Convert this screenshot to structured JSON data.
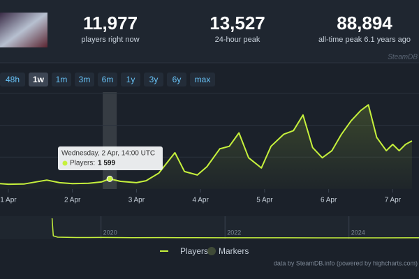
{
  "stats": [
    {
      "value": "11,977",
      "label": "players right now"
    },
    {
      "value": "13,527",
      "label": "24-hour peak"
    },
    {
      "value": "88,894",
      "label": "all-time peak 6.1 years ago"
    }
  ],
  "watermark": "SteamDB",
  "range_buttons": [
    "48h",
    "1w",
    "1m",
    "3m",
    "6m",
    "1y",
    "3y",
    "6y",
    "max"
  ],
  "active_button": 1,
  "tooltip": {
    "title": "Wednesday, 2 Apr, 14:00 UTC",
    "label": "Players:",
    "value": "1 599",
    "point": 8
  },
  "chart_data": [
    {
      "type": "line",
      "x": [
        0.87,
        1.0,
        1.25,
        1.6,
        1.8,
        2.0,
        2.25,
        2.45,
        2.583,
        2.75,
        3.0,
        3.15,
        3.35,
        3.6,
        3.75,
        3.95,
        4.1,
        4.3,
        4.45,
        4.6,
        4.75,
        4.95,
        5.1,
        5.3,
        5.45,
        5.6,
        5.75,
        5.9,
        6.05,
        6.2,
        6.35,
        6.5,
        6.62,
        6.75,
        6.9,
        7.0,
        7.1,
        7.2,
        7.3
      ],
      "series": [
        {
          "name": "Players",
          "color": "#c6f13c",
          "values": [
            850,
            750,
            800,
            1400,
            1000,
            850,
            900,
            1100,
            1599,
            1200,
            1000,
            1300,
            2500,
            5700,
            2750,
            2200,
            3500,
            6300,
            6700,
            8800,
            4900,
            3300,
            6700,
            8600,
            9150,
            11600,
            6500,
            4900,
            6000,
            8600,
            10700,
            12300,
            13200,
            8100,
            6000,
            7000,
            6000,
            7000,
            7550
          ]
        }
      ],
      "xlim": [
        0.87,
        7.41
      ],
      "xticks": [
        {
          "value": 1,
          "label": "1 Apr"
        },
        {
          "value": 2,
          "label": "2 Apr"
        },
        {
          "value": 3,
          "label": "3 Apr"
        },
        {
          "value": 4,
          "label": "4 Apr"
        },
        {
          "value": 5,
          "label": "5 Apr"
        },
        {
          "value": 6,
          "label": "6 Apr"
        },
        {
          "value": 7,
          "label": "7 Apr"
        }
      ],
      "ylim": [
        0,
        15200
      ],
      "yticks": [
        5000,
        10000,
        15000
      ],
      "grid": true
    },
    {
      "type": "navigator",
      "x": [
        2019.21,
        2019.23,
        2019.3,
        2019.6,
        2020.0,
        2020.5,
        2021.0,
        2021.5,
        2022.0,
        2022.5,
        2023.0,
        2023.5,
        2024.0,
        2024.5,
        2025.0,
        2025.13
      ],
      "series": [
        {
          "name": "Players",
          "color": "#c6f13c",
          "values": [
            88894,
            12000,
            6000,
            4500,
            5000,
            4000,
            4200,
            3800,
            3500,
            3300,
            3400,
            3200,
            3000,
            3100,
            3300,
            3500
          ]
        }
      ],
      "xlim": [
        2018.37,
        2025.13
      ],
      "xticks": [
        2020,
        2022,
        2024
      ],
      "ylim": [
        0,
        88894
      ]
    }
  ],
  "legend": [
    "Players",
    "Markers"
  ],
  "credit": "data by SteamDB.info (powered by highcharts.com)"
}
